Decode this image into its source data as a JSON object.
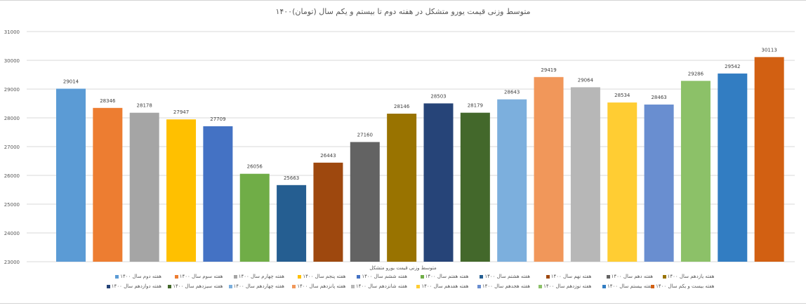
{
  "chart_data": {
    "type": "bar",
    "title": "متوسط وزنی قیمت یورو متشکل در هفته دوم تا بیستم و یکم سال (تومان)۱۴۰۰",
    "legend_title": "متوسط وزنی قیمت یورو متشکل",
    "legend_position": "bottom",
    "grid": true,
    "ylim": [
      23000,
      31000
    ],
    "yticks": [
      "23000",
      "24000",
      "25000",
      "26000",
      "27000",
      "28000",
      "29000",
      "30000",
      "31000"
    ],
    "series": [
      {
        "name": "هفته دوم سال ۱۴۰۰",
        "value": 29014,
        "color": "#5B9BD5"
      },
      {
        "name": "هفته سوم سال ۱۴۰۰",
        "value": 28346,
        "color": "#ED7D31"
      },
      {
        "name": "هفته چهارم سال ۱۴۰۰",
        "value": 28178,
        "color": "#A5A5A5"
      },
      {
        "name": "هفته پنجم سال ۱۴۰۰",
        "value": 27947,
        "color": "#FFC000"
      },
      {
        "name": "هفته ششم سال ۱۴۰۰",
        "value": 27709,
        "color": "#4472C4"
      },
      {
        "name": "هفته هفتم سال ۱۴۰۰",
        "value": 26056,
        "color": "#70AD47"
      },
      {
        "name": "هفته هشتم سال ۱۴۰۰",
        "value": 25663,
        "color": "#255E91"
      },
      {
        "name": "هفته نهم سال ۱۴۰۰",
        "value": 26443,
        "color": "#9E480E"
      },
      {
        "name": "هفته دهم سال ۱۴۰۰",
        "value": 27160,
        "color": "#636363"
      },
      {
        "name": "هفته یازدهم سال ۱۴۰۰",
        "value": 28146,
        "color": "#997300"
      },
      {
        "name": "هفته دوازدهم سال ۱۴۰۰",
        "value": 28503,
        "color": "#264478"
      },
      {
        "name": "هفته سیزدهم سال ۱۴۰۰",
        "value": 28179,
        "color": "#43682B"
      },
      {
        "name": "هفته چهاردهم سال ۱۴۰۰",
        "value": 28643,
        "color": "#7CAFDD"
      },
      {
        "name": "هفته پانزدهم سال ۱۴۰۰",
        "value": 29419,
        "color": "#F1975A"
      },
      {
        "name": "هفته شانزدهم سال ۱۴۰۰",
        "value": 29064,
        "color": "#B7B7B7"
      },
      {
        "name": "هفته هفدهم سال ۱۴۰۰",
        "value": 28534,
        "color": "#FFCD33"
      },
      {
        "name": "هفته هجدهم سال ۱۴۰۰",
        "value": 28463,
        "color": "#698ED0"
      },
      {
        "name": "هفته نوزدهم سال ۱۴۰۰",
        "value": 29286,
        "color": "#8CC168"
      },
      {
        "name": "هفته بیستم سال ۱۴۰۰",
        "value": 29542,
        "color": "#327DC2"
      },
      {
        "name": "هفته بیست و یکم سال ۱۴۰۰",
        "value": 30113,
        "color": "#D26012"
      }
    ]
  }
}
